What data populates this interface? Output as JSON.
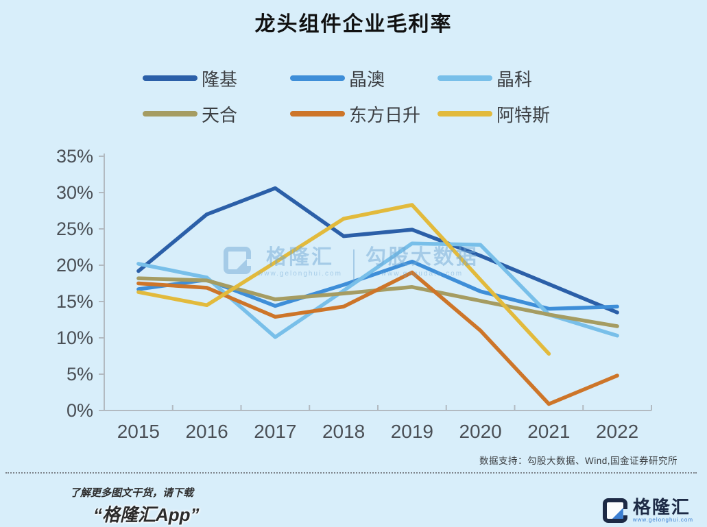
{
  "title": "龙头组件企业毛利率",
  "chart_data": {
    "type": "line",
    "title": "龙头组件企业毛利率",
    "categories": [
      "2015",
      "2016",
      "2017",
      "2018",
      "2019",
      "2020",
      "2021",
      "2022"
    ],
    "series": [
      {
        "name": "隆基",
        "color": "#2b5fa8",
        "values": [
          19.2,
          27.0,
          30.6,
          24.0,
          24.9,
          21.3,
          17.4,
          13.5
        ]
      },
      {
        "name": "晶澳",
        "color": "#3e8ed8",
        "values": [
          16.7,
          18.0,
          14.4,
          17.3,
          20.5,
          16.4,
          14.0,
          14.3
        ]
      },
      {
        "name": "晶科",
        "color": "#78bfe9",
        "values": [
          20.2,
          18.3,
          10.1,
          16.5,
          23.0,
          22.8,
          13.2,
          10.3
        ]
      },
      {
        "name": "天合",
        "color": "#a59c62",
        "values": [
          18.2,
          17.9,
          15.3,
          16.1,
          17.0,
          15.1,
          13.2,
          11.6
        ]
      },
      {
        "name": "东方日升",
        "color": "#cd7529",
        "values": [
          17.5,
          16.9,
          12.9,
          14.3,
          19.0,
          11.0,
          0.9,
          4.8
        ]
      },
      {
        "name": "阿特斯",
        "color": "#e2ba3c",
        "values": [
          16.3,
          14.5,
          20.4,
          26.4,
          28.3,
          18.0,
          7.8,
          null
        ]
      }
    ],
    "xlabel": "",
    "ylabel": "",
    "ylim": [
      0,
      35
    ],
    "ytick_step": 5,
    "ytick_labels": [
      "0%",
      "5%",
      "10%",
      "15%",
      "20%",
      "25%",
      "30%",
      "35%"
    ],
    "legend_position": "top",
    "grid": false
  },
  "watermark": {
    "brand": "格隆汇",
    "brand_url": "www.gelonghui.com",
    "product": "勾股大数据",
    "product_url": "www.gogudata.com"
  },
  "source_note": "数据支持：勾股大数据、Wind,国金证券研究所",
  "footer": {
    "promo_line1": "了解更多图文干货，请下载",
    "promo_line2": "“格隆汇App”",
    "logo_text": "格隆汇",
    "logo_url": "www.gelonghui.com"
  }
}
